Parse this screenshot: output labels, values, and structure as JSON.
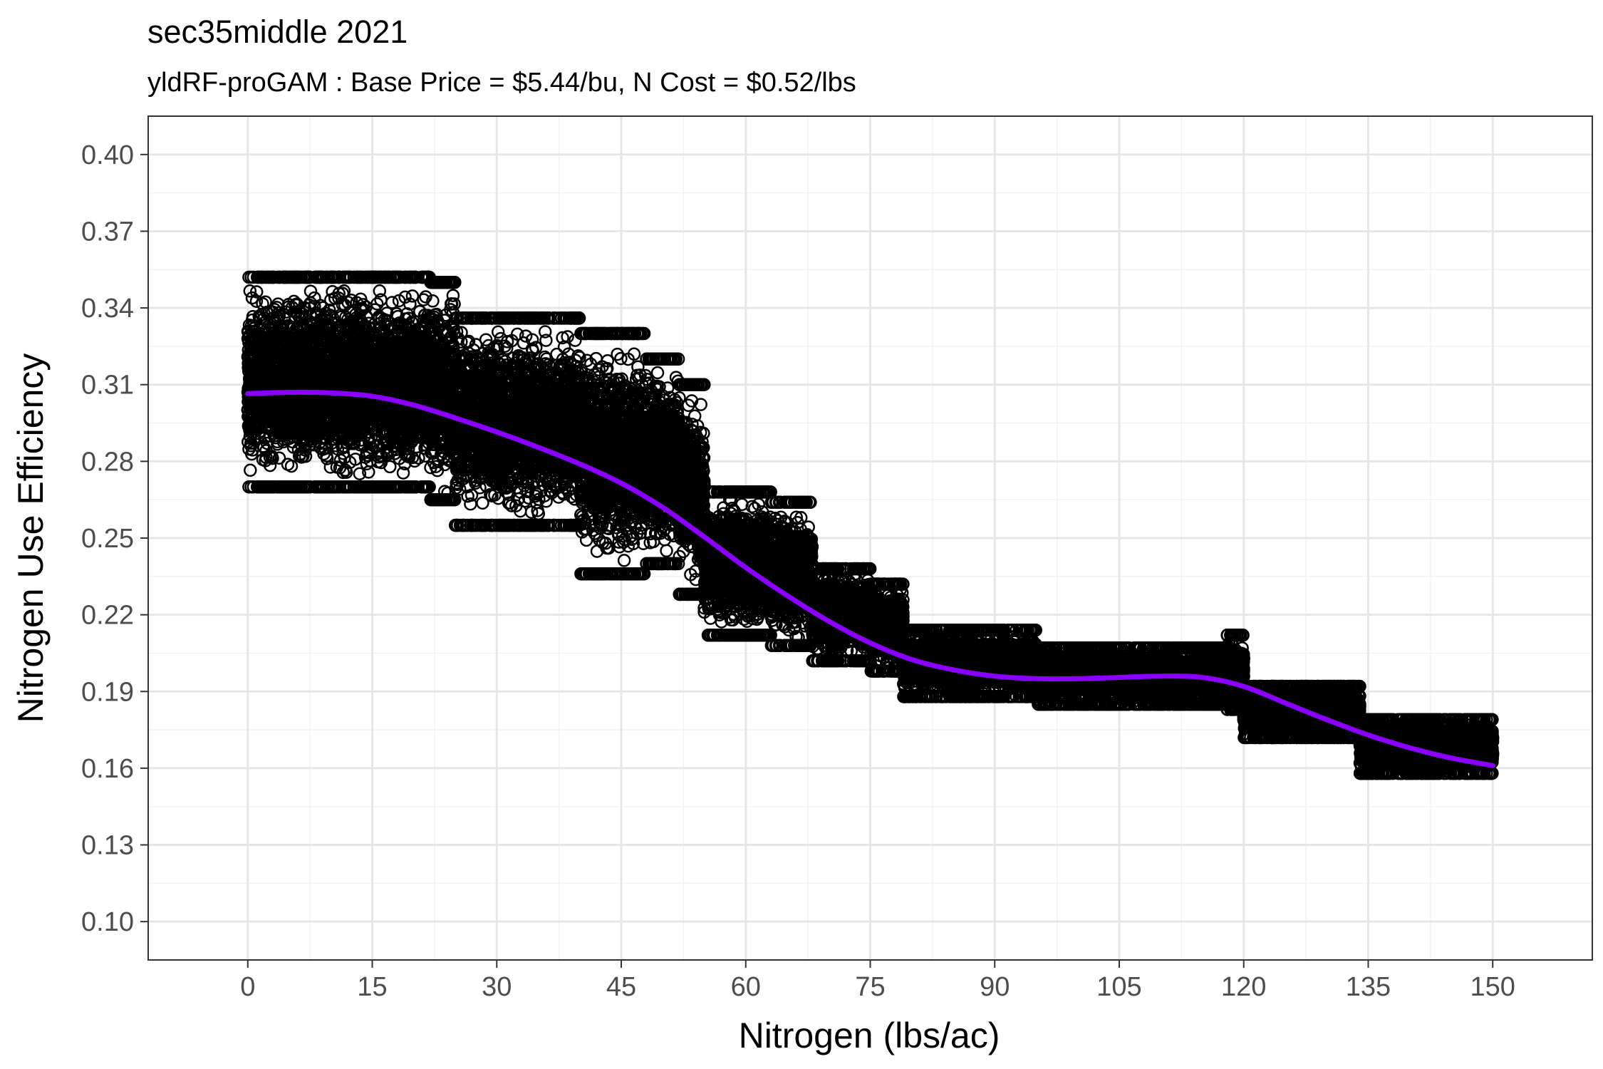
{
  "chart_data": {
    "type": "scatter",
    "title": "sec35middle 2021",
    "subtitle": "yldRF-proGAM : Base Price = $5.44/bu, N Cost = $0.52/lbs",
    "xlabel": "Nitrogen (lbs/ac)",
    "ylabel": "Nitrogen Use Efficiency",
    "xlim": [
      -12,
      162
    ],
    "ylim": [
      0.085,
      0.415
    ],
    "x_ticks": [
      "0",
      "15",
      "30",
      "45",
      "60",
      "75",
      "90",
      "105",
      "120",
      "135",
      "150"
    ],
    "y_ticks": [
      "0.10",
      "0.13",
      "0.16",
      "0.19",
      "0.22",
      "0.25",
      "0.28",
      "0.31",
      "0.34",
      "0.37",
      "0.40"
    ],
    "grid": true,
    "legend": "none",
    "points_style": "open black circles",
    "point_bands": [
      {
        "x": [
          0,
          22
        ],
        "y": [
          0.27,
          0.352
        ]
      },
      {
        "x": [
          22,
          25
        ],
        "y": [
          0.265,
          0.35
        ]
      },
      {
        "x": [
          25,
          40
        ],
        "y": [
          0.255,
          0.336
        ]
      },
      {
        "x": [
          40,
          48
        ],
        "y": [
          0.236,
          0.33
        ]
      },
      {
        "x": [
          48,
          52
        ],
        "y": [
          0.24,
          0.32
        ]
      },
      {
        "x": [
          52,
          55
        ],
        "y": [
          0.228,
          0.31
        ]
      },
      {
        "x": [
          55,
          63
        ],
        "y": [
          0.212,
          0.268
        ]
      },
      {
        "x": [
          63,
          68
        ],
        "y": [
          0.208,
          0.264
        ]
      },
      {
        "x": [
          68,
          75
        ],
        "y": [
          0.202,
          0.238
        ]
      },
      {
        "x": [
          75,
          79
        ],
        "y": [
          0.198,
          0.232
        ]
      },
      {
        "x": [
          79,
          95
        ],
        "y": [
          0.188,
          0.214
        ]
      },
      {
        "x": [
          95,
          118
        ],
        "y": [
          0.185,
          0.207
        ]
      },
      {
        "x": [
          118,
          120
        ],
        "y": [
          0.183,
          0.212
        ]
      },
      {
        "x": [
          120,
          134
        ],
        "y": [
          0.172,
          0.192
        ]
      },
      {
        "x": [
          134,
          150
        ],
        "y": [
          0.158,
          0.179
        ]
      }
    ],
    "series": [
      {
        "type": "line",
        "color": "#8b00ff",
        "x": [
          0,
          5,
          10,
          15,
          20,
          25,
          30,
          35,
          40,
          45,
          50,
          55,
          60,
          65,
          70,
          75,
          80,
          85,
          90,
          95,
          100,
          105,
          110,
          115,
          120,
          125,
          130,
          135,
          140,
          145,
          150
        ],
        "values": [
          0.3065,
          0.307,
          0.3068,
          0.3055,
          0.302,
          0.297,
          0.2915,
          0.2855,
          0.279,
          0.2715,
          0.262,
          0.2505,
          0.2385,
          0.2275,
          0.2175,
          0.209,
          0.2025,
          0.1985,
          0.196,
          0.195,
          0.195,
          0.1955,
          0.196,
          0.1955,
          0.192,
          0.1855,
          0.179,
          0.173,
          0.168,
          0.164,
          0.161
        ]
      }
    ],
    "colors": {
      "points": "#000000",
      "smooth_line": "#8b00ff",
      "grid": "#ebebeb",
      "panel_border": "#333333"
    }
  }
}
